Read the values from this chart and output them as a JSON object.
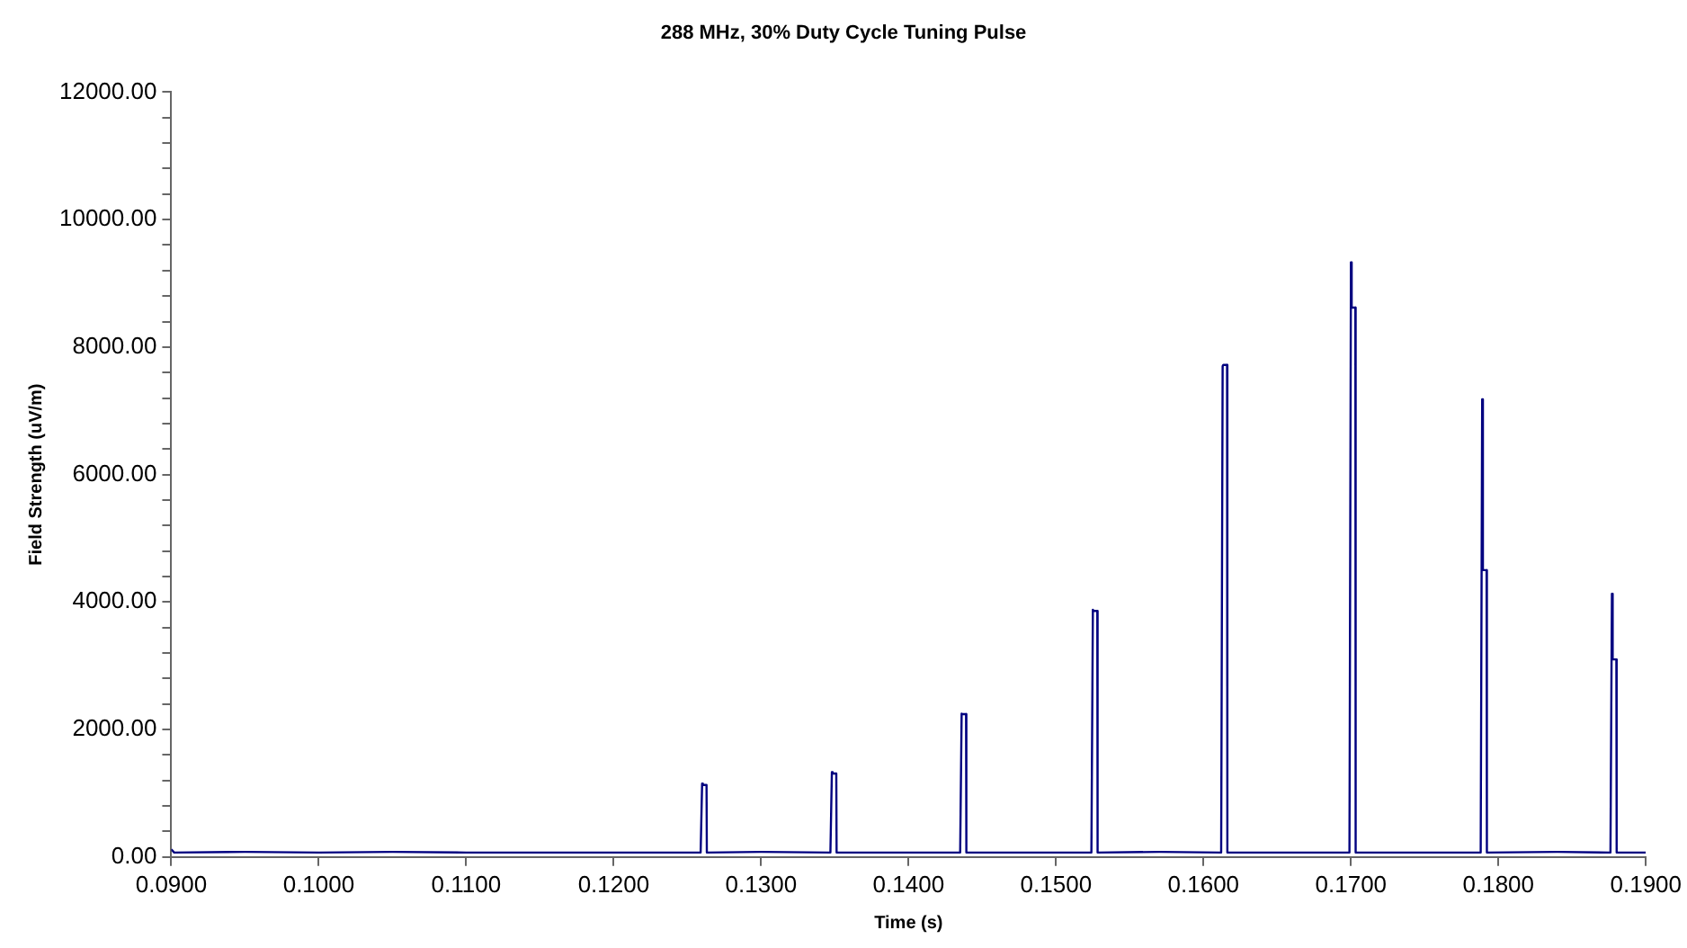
{
  "chart_data": {
    "type": "line",
    "title": "288 MHz, 30% Duty Cycle Tuning Pulse",
    "xlabel": "Time (s)",
    "ylabel": "Field Strength (uV/m)",
    "x": [
      0.09,
      0.0902,
      0.095,
      0.1,
      0.105,
      0.11,
      0.115,
      0.12,
      0.1259,
      0.126,
      0.12605,
      0.1263,
      0.12632,
      0.13,
      0.1347,
      0.1348,
      0.13485,
      0.1351,
      0.13512,
      0.14,
      0.1435,
      0.1436,
      0.14365,
      0.1439,
      0.14392,
      0.148,
      0.1524,
      0.1525,
      0.15255,
      0.1528,
      0.15282,
      0.157,
      0.1612,
      0.1613,
      0.16135,
      0.1616,
      0.16162,
      0.166,
      0.1699,
      0.17,
      0.17005,
      0.1703,
      0.17032,
      0.175,
      0.1788,
      0.1789,
      0.17895,
      0.1792,
      0.17922,
      0.184,
      0.1876,
      0.1877,
      0.18775,
      0.188,
      0.18802,
      0.19
    ],
    "series": [
      {
        "color": "#000080",
        "values": [
          120,
          70,
          80,
          70,
          80,
          70,
          70,
          70,
          70,
          1150,
          1130,
          1130,
          70,
          80,
          70,
          1330,
          1310,
          1310,
          70,
          70,
          70,
          2250,
          2240,
          2240,
          70,
          70,
          70,
          3880,
          3860,
          3860,
          70,
          80,
          70,
          7700,
          7720,
          7720,
          70,
          70,
          70,
          9330,
          8620,
          8620,
          70,
          70,
          70,
          7180,
          4500,
          4500,
          70,
          80,
          70,
          4130,
          3100,
          3100,
          70,
          70
        ]
      }
    ],
    "xlim": [
      0.09,
      0.19
    ],
    "xticks": [
      {
        "value": 0.09,
        "label": "0.0900"
      },
      {
        "value": 0.1,
        "label": "0.1000"
      },
      {
        "value": 0.11,
        "label": "0.1100"
      },
      {
        "value": 0.12,
        "label": "0.1200"
      },
      {
        "value": 0.13,
        "label": "0.1300"
      },
      {
        "value": 0.14,
        "label": "0.1400"
      },
      {
        "value": 0.15,
        "label": "0.1500"
      },
      {
        "value": 0.16,
        "label": "0.1600"
      },
      {
        "value": 0.17,
        "label": "0.1700"
      },
      {
        "value": 0.18,
        "label": "0.1800"
      },
      {
        "value": 0.19,
        "label": "0.1900"
      }
    ],
    "ylim": [
      0,
      12000
    ],
    "yticks": [
      {
        "value": 0,
        "label": "0.00"
      },
      {
        "value": 400,
        "label": null
      },
      {
        "value": 800,
        "label": null
      },
      {
        "value": 1200,
        "label": null
      },
      {
        "value": 1600,
        "label": null
      },
      {
        "value": 2000,
        "label": "2000.00"
      },
      {
        "value": 2400,
        "label": null
      },
      {
        "value": 2800,
        "label": null
      },
      {
        "value": 3200,
        "label": null
      },
      {
        "value": 3600,
        "label": null
      },
      {
        "value": 4000,
        "label": "4000.00"
      },
      {
        "value": 4400,
        "label": null
      },
      {
        "value": 4800,
        "label": null
      },
      {
        "value": 5200,
        "label": null
      },
      {
        "value": 5600,
        "label": null
      },
      {
        "value": 6000,
        "label": "6000.00"
      },
      {
        "value": 6400,
        "label": null
      },
      {
        "value": 6800,
        "label": null
      },
      {
        "value": 7200,
        "label": null
      },
      {
        "value": 7600,
        "label": null
      },
      {
        "value": 8000,
        "label": "8000.00"
      },
      {
        "value": 8400,
        "label": null
      },
      {
        "value": 8800,
        "label": null
      },
      {
        "value": 9200,
        "label": null
      },
      {
        "value": 9600,
        "label": null
      },
      {
        "value": 10000,
        "label": "10000.00"
      },
      {
        "value": 10400,
        "label": null
      },
      {
        "value": 10800,
        "label": null
      },
      {
        "value": 11200,
        "label": null
      },
      {
        "value": 11600,
        "label": null
      },
      {
        "value": 12000,
        "label": "12000.00"
      }
    ],
    "grid": false,
    "legend": false,
    "marker": "none",
    "line_style": "solid"
  }
}
